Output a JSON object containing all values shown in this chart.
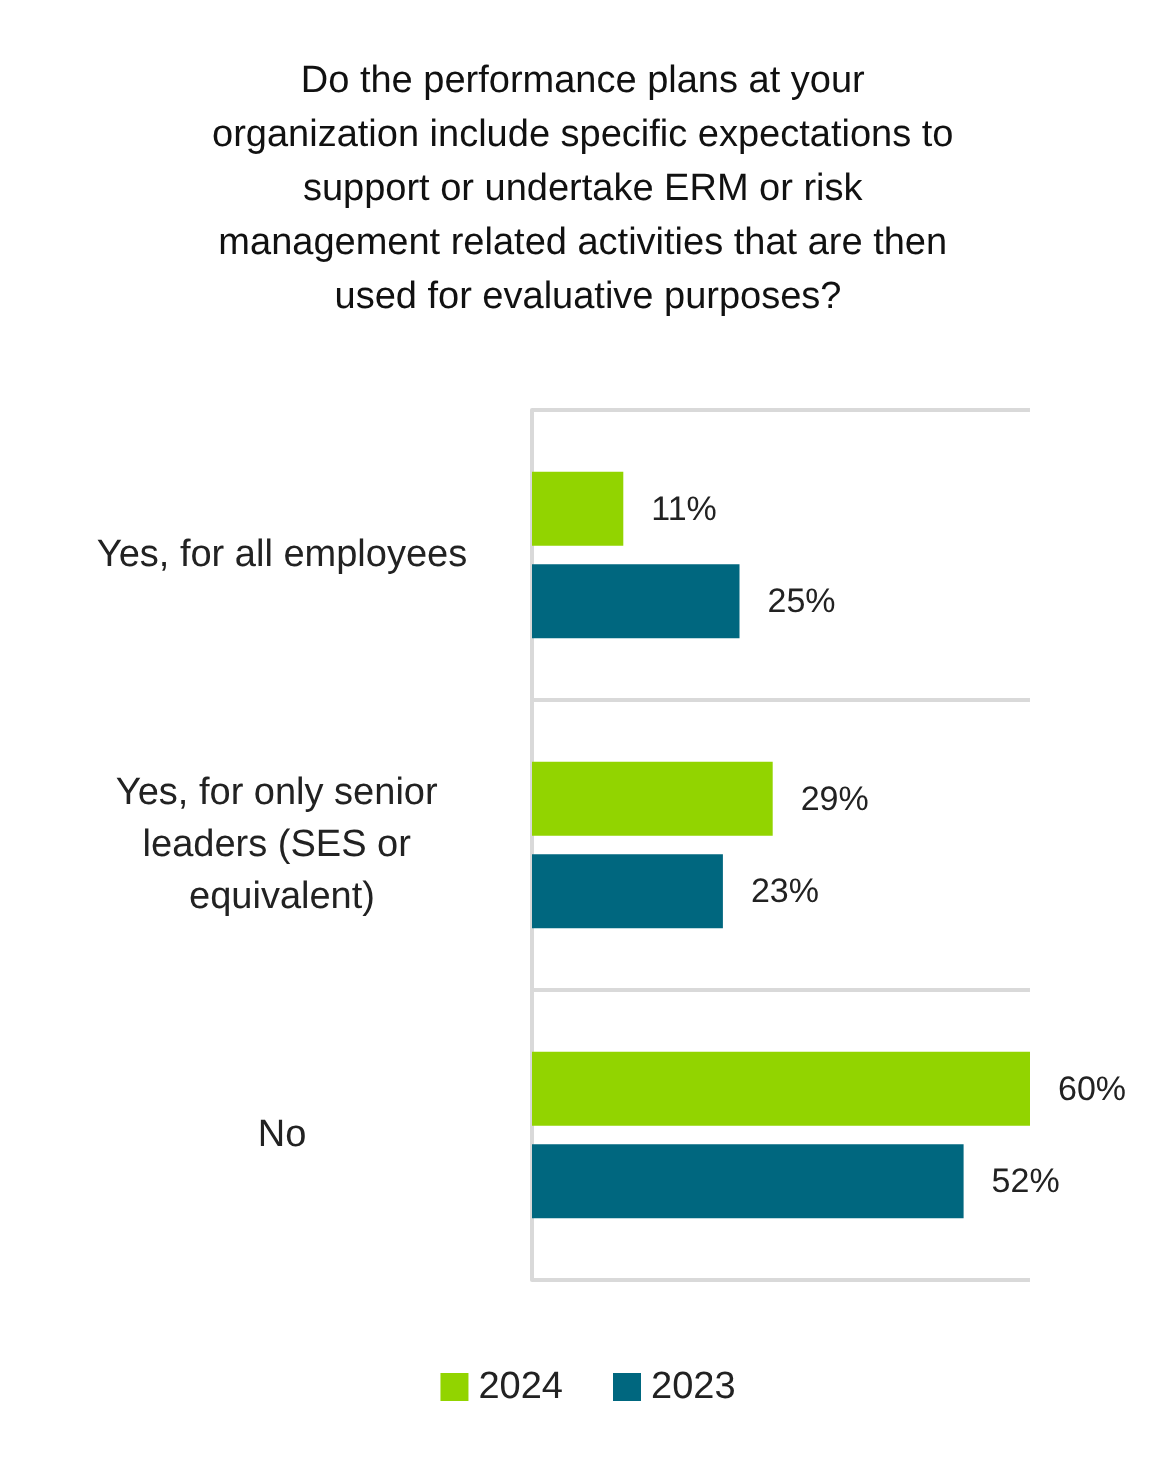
{
  "chart_data": {
    "type": "bar",
    "orientation": "horizontal",
    "title": "Do the performance plans at your organization include specific expectations to support or undertake ERM or risk management related activities that are then used for evaluative purposes?",
    "categories": [
      "Yes, for all employees",
      "Yes, for only senior leaders (SES or equivalent)",
      "No"
    ],
    "series": [
      {
        "name": "2024",
        "color": "#92d400",
        "values": [
          11,
          29,
          60
        ],
        "value_labels": [
          "11%",
          "29%",
          "60%"
        ]
      },
      {
        "name": "2023",
        "color": "#00677f",
        "values": [
          25,
          23,
          52
        ],
        "value_labels": [
          "25%",
          "23%",
          "52%"
        ]
      }
    ],
    "grid": "y",
    "legend": "bottom"
  }
}
